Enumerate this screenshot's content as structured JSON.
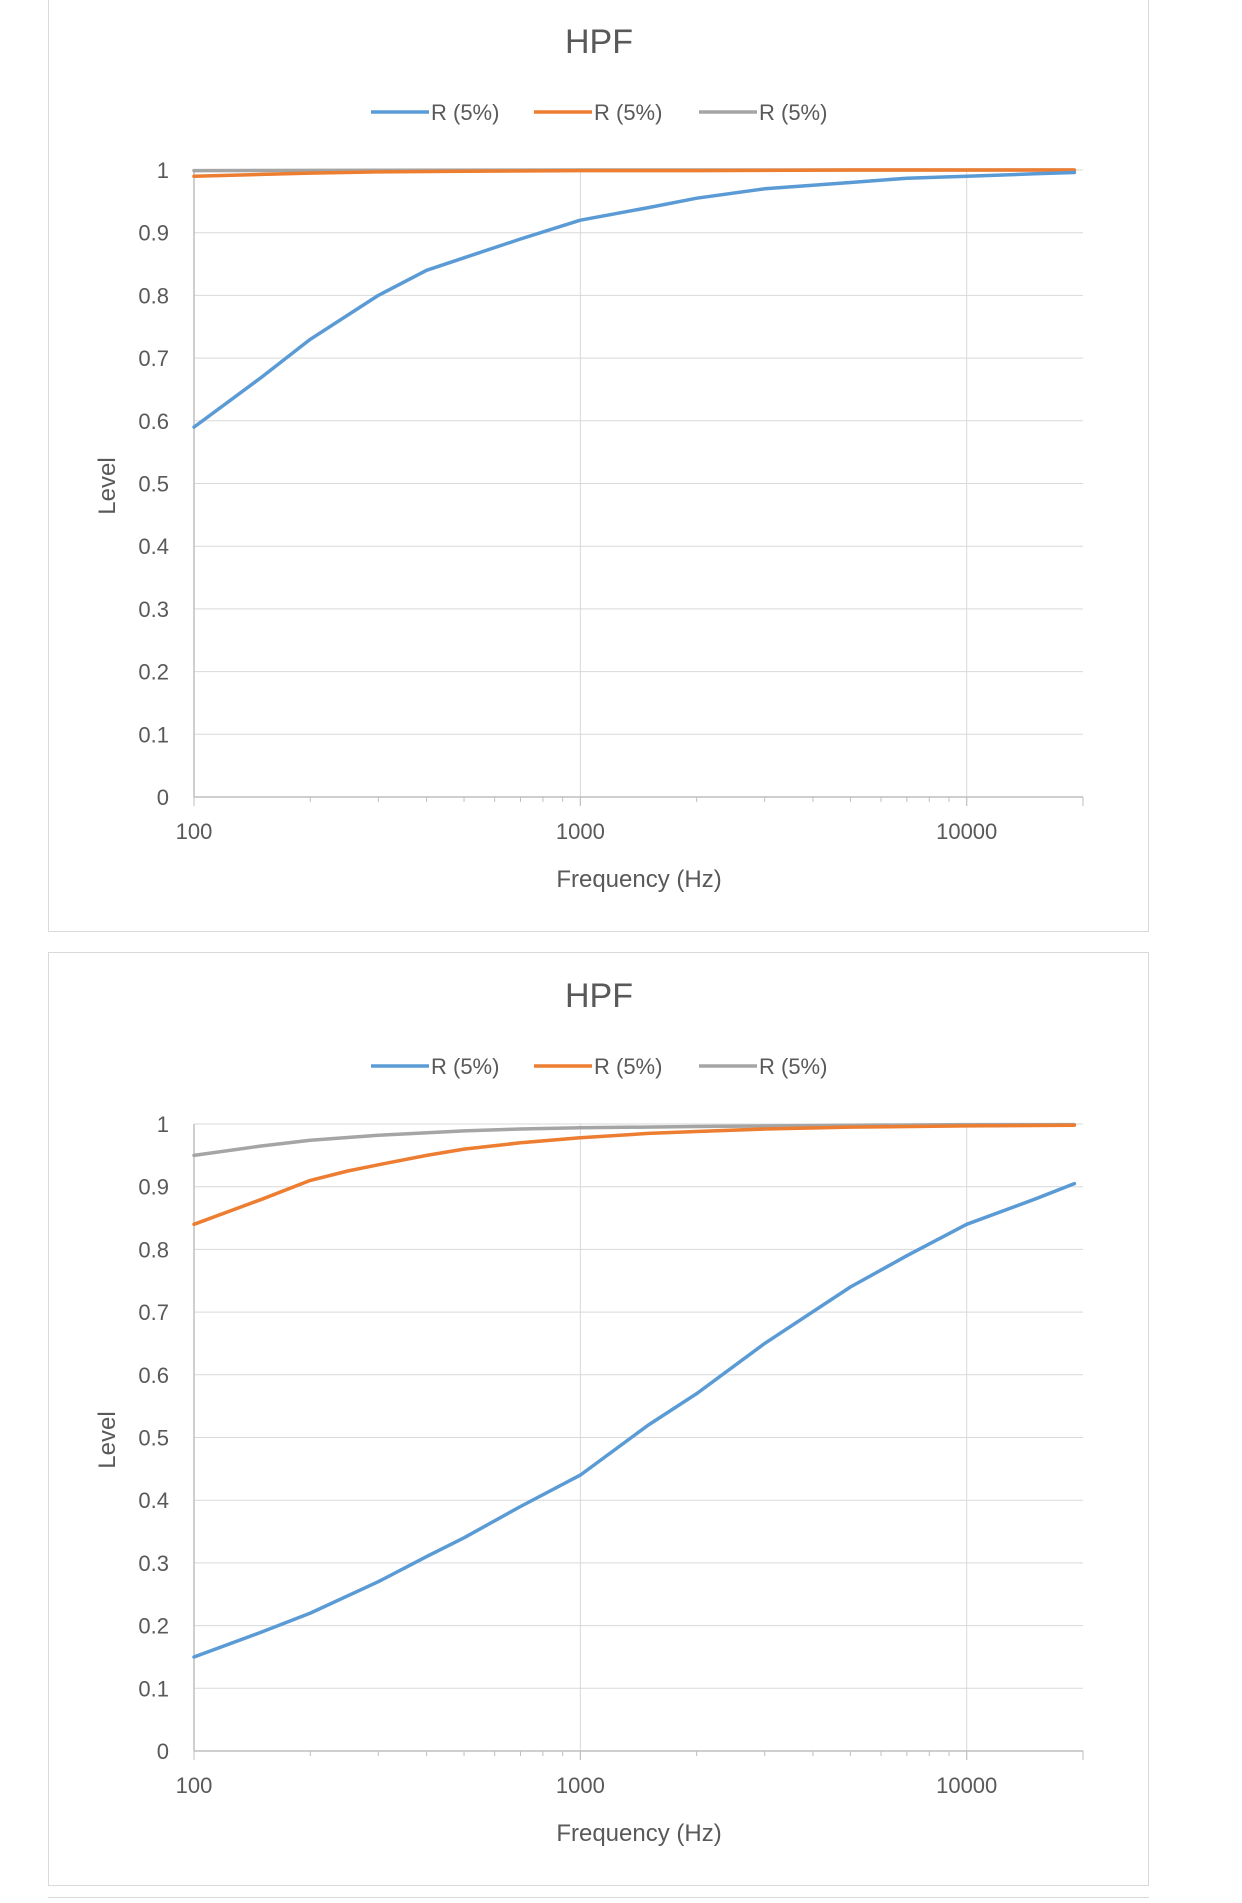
{
  "chart_data": [
    {
      "type": "line",
      "title": "HPF",
      "xlabel": "Frequency (Hz)",
      "ylabel": "Level",
      "xscale": "log",
      "xlim": [
        100,
        20000
      ],
      "ylim": [
        0,
        1
      ],
      "xticks": [
        "100",
        "1000",
        "10000"
      ],
      "yticks": [
        "0",
        "0.1",
        "0.2",
        "0.3",
        "0.4",
        "0.5",
        "0.6",
        "0.7",
        "0.8",
        "0.9",
        "1"
      ],
      "grid": true,
      "legend_position": "top",
      "series": [
        {
          "name": "R (5%)",
          "color": "#5b9bd5",
          "x": [
            100,
            150,
            200,
            300,
            400,
            500,
            700,
            1000,
            1500,
            2000,
            3000,
            5000,
            7000,
            10000,
            15000,
            19000
          ],
          "y": [
            0.59,
            0.67,
            0.73,
            0.8,
            0.84,
            0.86,
            0.89,
            0.92,
            0.94,
            0.955,
            0.97,
            0.98,
            0.987,
            0.99,
            0.994,
            0.996
          ]
        },
        {
          "name": "R (5%)",
          "color": "#ed7d31",
          "x": [
            100,
            150,
            200,
            300,
            500,
            1000,
            2000,
            5000,
            10000,
            19000
          ],
          "y": [
            0.99,
            0.993,
            0.995,
            0.997,
            0.998,
            0.999,
            0.999,
            1.0,
            1.0,
            1.0
          ]
        },
        {
          "name": "R (5%)",
          "color": "#a5a5a5",
          "x": [
            100,
            1000,
            10000,
            19000
          ],
          "y": [
            0.999,
            1.0,
            1.0,
            1.0
          ]
        }
      ]
    },
    {
      "type": "line",
      "title": "HPF",
      "xlabel": "Frequency (Hz)",
      "ylabel": "Level",
      "xscale": "log",
      "xlim": [
        100,
        20000
      ],
      "ylim": [
        0,
        1
      ],
      "xticks": [
        "100",
        "1000",
        "10000"
      ],
      "yticks": [
        "0",
        "0.1",
        "0.2",
        "0.3",
        "0.4",
        "0.5",
        "0.6",
        "0.7",
        "0.8",
        "0.9",
        "1"
      ],
      "grid": true,
      "legend_position": "top",
      "series": [
        {
          "name": "R (5%)",
          "color": "#5b9bd5",
          "x": [
            100,
            150,
            200,
            300,
            400,
            500,
            700,
            1000,
            1500,
            2000,
            3000,
            5000,
            7000,
            10000,
            15000,
            19000
          ],
          "y": [
            0.15,
            0.19,
            0.22,
            0.27,
            0.31,
            0.34,
            0.39,
            0.44,
            0.52,
            0.57,
            0.65,
            0.74,
            0.79,
            0.84,
            0.88,
            0.905
          ]
        },
        {
          "name": "R (5%)",
          "color": "#ed7d31",
          "x": [
            100,
            150,
            200,
            250,
            300,
            400,
            500,
            700,
            1000,
            1500,
            2000,
            3000,
            5000,
            10000,
            19000
          ],
          "y": [
            0.84,
            0.88,
            0.91,
            0.925,
            0.935,
            0.95,
            0.96,
            0.97,
            0.978,
            0.985,
            0.988,
            0.992,
            0.995,
            0.997,
            0.998
          ]
        },
        {
          "name": "R (5%)",
          "color": "#a5a5a5",
          "x": [
            100,
            150,
            200,
            300,
            500,
            700,
            1000,
            2000,
            5000,
            10000,
            19000
          ],
          "y": [
            0.95,
            0.965,
            0.974,
            0.982,
            0.989,
            0.992,
            0.994,
            0.996,
            0.998,
            0.999,
            0.999
          ]
        }
      ]
    }
  ]
}
